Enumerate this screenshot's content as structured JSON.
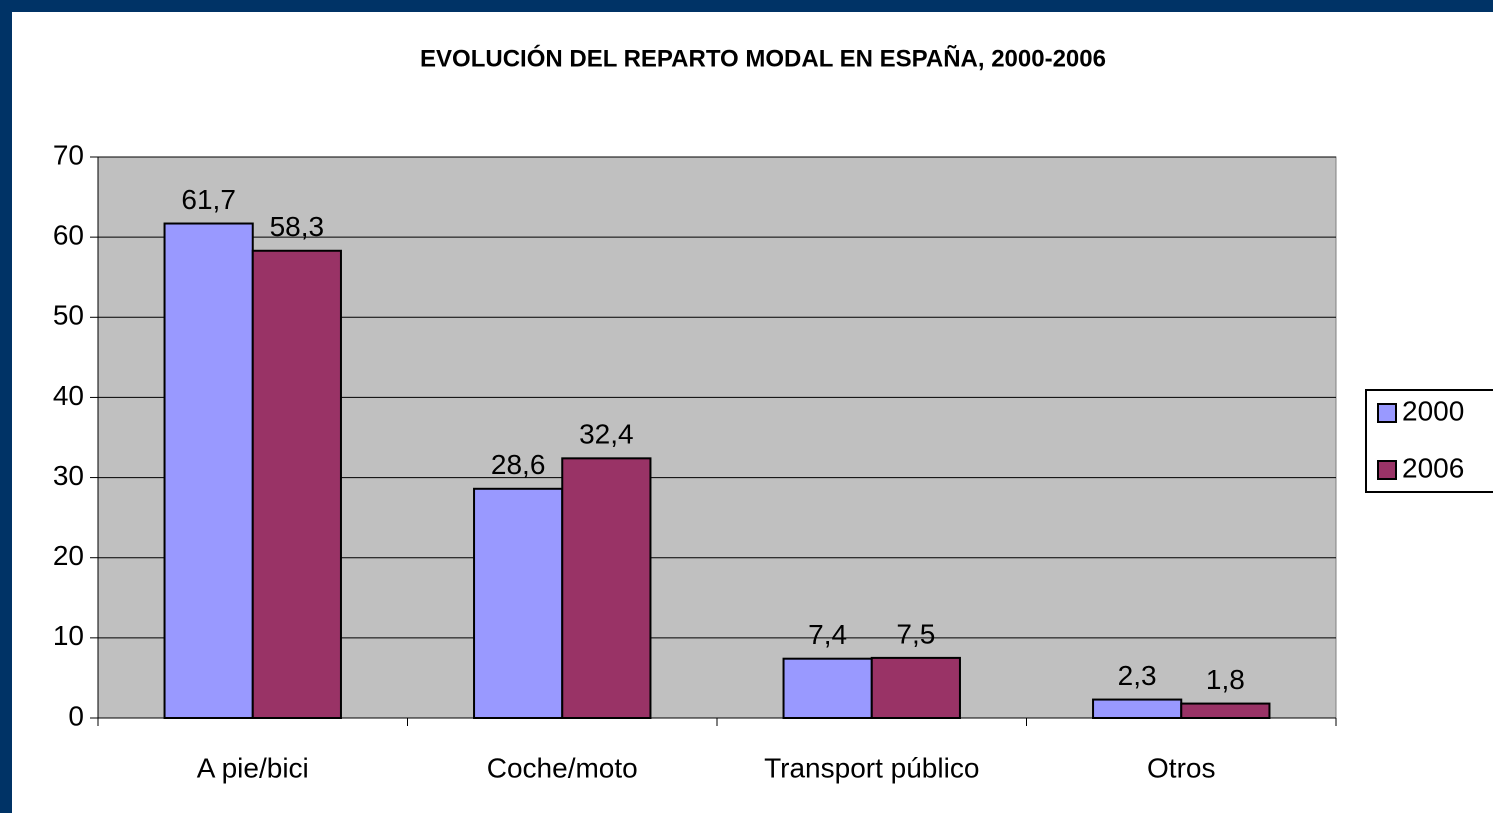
{
  "chart_data": {
    "type": "bar",
    "title": "EVOLUCIÓN DEL REPARTO MODAL EN ESPAÑA, 2000-2006",
    "categories": [
      "A pie/bici",
      "Coche/moto",
      "Transport público",
      "Otros"
    ],
    "series": [
      {
        "name": "2000",
        "color": "#9999ff",
        "values": [
          61.7,
          28.6,
          7.4,
          2.3
        ],
        "value_labels": [
          "61,7",
          "28,6",
          "7,4",
          "2,3"
        ]
      },
      {
        "name": "2006",
        "color": "#993366",
        "values": [
          58.3,
          32.4,
          7.5,
          1.8
        ],
        "value_labels": [
          "58,3",
          "32,4",
          "7,5",
          "1,8"
        ]
      }
    ],
    "ylim": [
      0,
      70
    ],
    "yticks": [
      0,
      10,
      20,
      30,
      40,
      50,
      60,
      70
    ],
    "grid": true,
    "legend": "right"
  }
}
